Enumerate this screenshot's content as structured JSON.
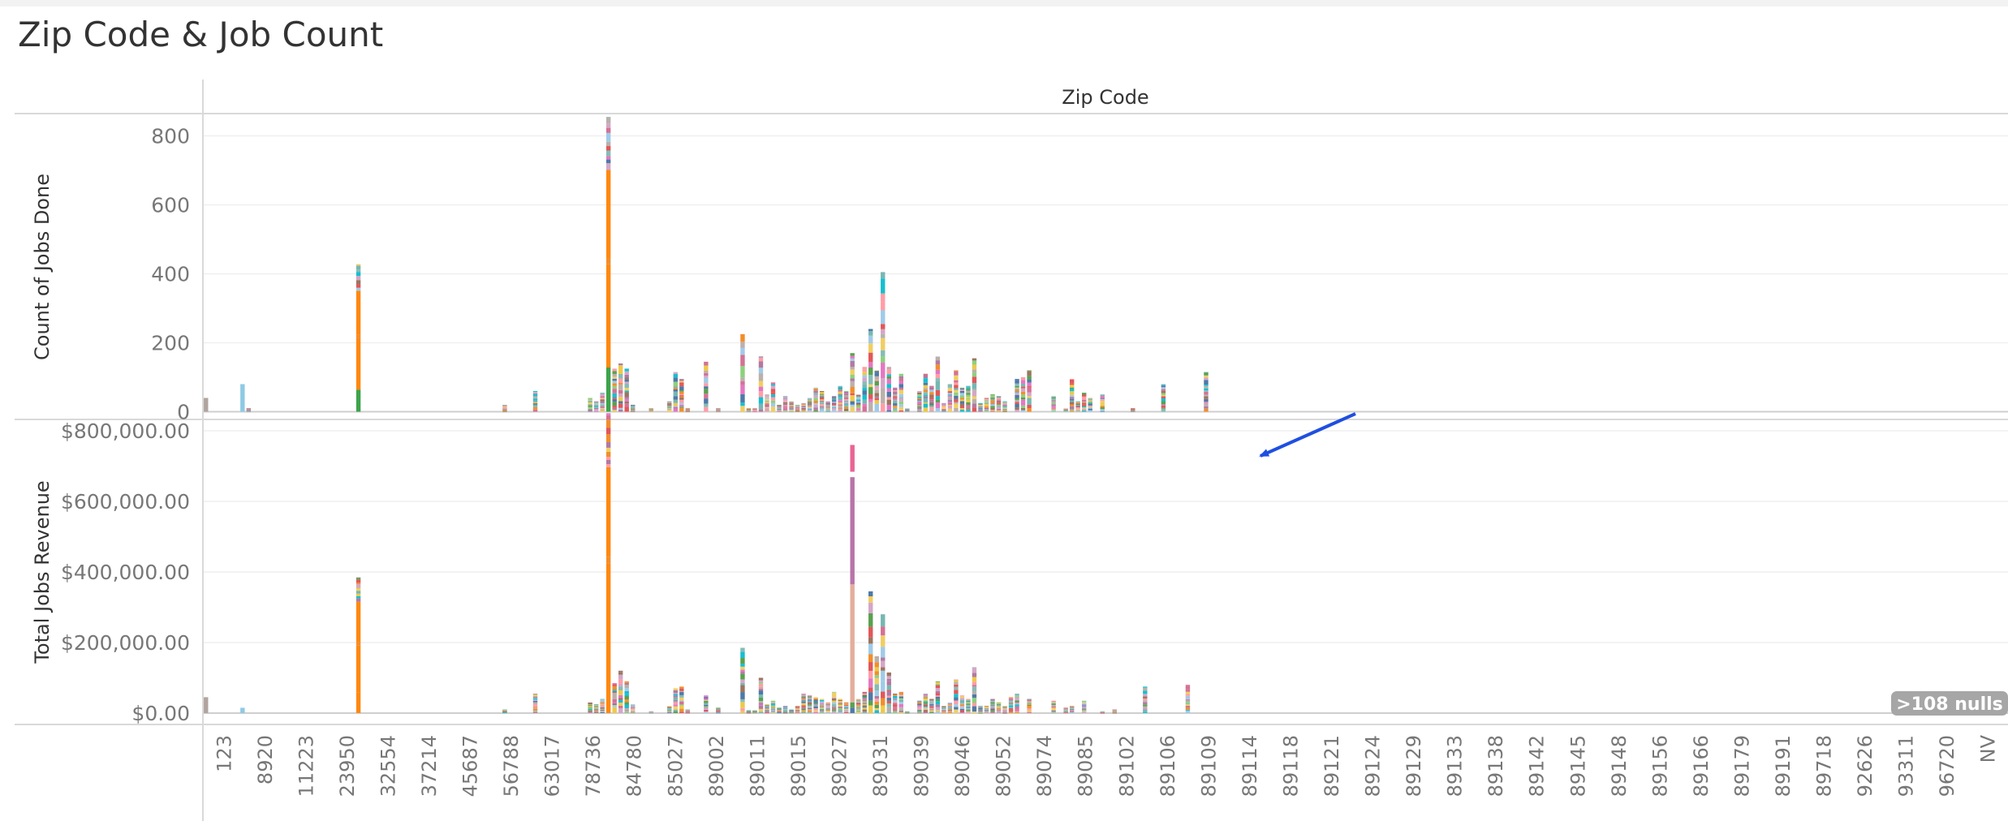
{
  "dashboard": {
    "title": "Zip Code & Job Count"
  },
  "colors": {
    "palette": [
      "#4e79a7",
      "#f28e2b",
      "#e15759",
      "#76b7b2",
      "#59a14f",
      "#edc948",
      "#b07aa1",
      "#ff9da7",
      "#9c755f",
      "#bab0ac",
      "#d37295",
      "#a0cbe8",
      "#8cd17d",
      "#f1ce63",
      "#86bcb6",
      "#d4a6c8",
      "#e377c2",
      "#17becf"
    ],
    "orange": "#ff8811",
    "light_blue": "#8ecae6",
    "grey": "#b0a59d",
    "green": "#3da34b",
    "peach": "#e3ae9c",
    "mauve": "#b874a7",
    "pink": "#e86494",
    "arrow": "#1f4fe0",
    "nulls_badge": "#a6a6a6"
  },
  "chart_data": {
    "type": "bar",
    "stacked": true,
    "column_header": "Zip Code",
    "x_tick_labels": [
      "123",
      "8920",
      "11223",
      "23950",
      "32554",
      "37214",
      "45687",
      "56788",
      "63017",
      "78736",
      "84780",
      "85027",
      "89002",
      "89011",
      "89015",
      "89027",
      "89031",
      "89039",
      "89046",
      "89052",
      "89074",
      "89085",
      "89102",
      "89106",
      "89109",
      "89114",
      "89118",
      "89121",
      "89124",
      "89129",
      "89133",
      "89138",
      "89142",
      "89145",
      "89148",
      "89156",
      "89166",
      "89179",
      "89191",
      "89718",
      "92626",
      "93311",
      "96720",
      "NV"
    ],
    "categories_count": 131,
    "panes": [
      {
        "measure": "Count of Jobs Done",
        "ylabel": "Count of Jobs Done",
        "ylim": [
          -20,
          860
        ],
        "y_ticks": [
          {
            "value": 0,
            "label": "0"
          },
          {
            "value": 200,
            "label": "200"
          },
          {
            "value": 400,
            "label": "400"
          },
          {
            "value": 600,
            "label": "600"
          },
          {
            "value": 800,
            "label": "800"
          }
        ],
        "values": [
          40,
          0,
          0,
          0,
          0,
          0,
          80,
          10,
          0,
          0,
          0,
          0,
          0,
          0,
          0,
          0,
          0,
          0,
          0,
          0,
          0,
          0,
          0,
          0,
          0,
          428,
          0,
          0,
          0,
          0,
          0,
          0,
          0,
          0,
          0,
          0,
          0,
          0,
          0,
          0,
          0,
          0,
          0,
          0,
          0,
          0,
          0,
          0,
          0,
          20,
          0,
          0,
          0,
          0,
          60,
          0,
          0,
          0,
          0,
          0,
          0,
          0,
          0,
          40,
          30,
          55,
          855,
          125,
          140,
          125,
          20,
          0,
          0,
          10,
          0,
          0,
          30,
          115,
          95,
          10,
          0,
          0,
          145,
          0,
          10,
          0,
          0,
          0,
          225,
          10,
          10,
          160,
          50,
          85,
          20,
          45,
          30,
          20,
          25,
          40,
          70,
          60,
          30,
          45,
          75,
          60,
          170,
          50,
          130,
          240,
          120,
          405,
          130,
          70,
          110,
          10,
          0,
          60,
          110,
          75,
          160,
          25,
          80,
          120,
          70,
          75,
          155,
          25,
          40,
          50,
          45,
          30,
          0,
          95,
          100,
          120,
          0,
          0,
          0,
          45,
          0,
          10,
          95,
          30,
          55,
          40,
          0,
          50,
          0,
          0,
          0,
          0,
          10,
          0,
          0,
          0,
          0,
          80,
          0,
          0,
          0,
          0,
          0,
          0,
          115,
          0,
          0,
          0,
          0,
          0,
          0,
          0,
          0,
          0,
          0,
          0,
          0,
          0,
          0,
          0,
          0,
          0,
          0,
          0,
          0,
          0,
          0,
          0,
          0,
          0,
          0,
          0,
          0,
          0,
          0,
          0,
          0,
          0,
          0,
          0,
          0,
          0,
          0,
          0,
          0,
          0,
          0,
          0,
          0,
          0,
          0,
          0,
          0,
          0,
          0,
          0,
          0,
          0,
          0,
          0,
          0,
          0,
          0,
          0,
          0,
          0,
          0,
          0,
          0,
          0,
          0,
          0,
          0,
          0,
          0,
          0,
          0,
          0,
          0,
          0,
          0,
          0,
          0,
          0,
          0,
          0,
          0,
          0,
          0,
          0,
          0,
          0,
          0,
          0,
          0,
          0,
          0,
          0,
          0,
          0,
          0,
          0,
          0,
          0,
          0,
          0,
          0,
          0,
          0,
          0,
          0,
          0,
          0,
          0,
          0,
          0,
          0,
          0,
          0,
          0,
          0,
          0,
          0,
          0,
          0,
          0,
          0,
          0,
          0,
          0,
          0,
          0,
          0,
          0,
          0,
          0
        ]
      },
      {
        "measure": "Total Jobs Revenue",
        "ylabel": "Total Jobs Revenue",
        "ylim": [
          -30000,
          830000
        ],
        "y_ticks": [
          {
            "value": 0,
            "label": "$0.00"
          },
          {
            "value": 200000,
            "label": "$200,000.00"
          },
          {
            "value": 400000,
            "label": "$400,000.00"
          },
          {
            "value": 600000,
            "label": "$600,000.00"
          },
          {
            "value": 800000,
            "label": "$800,000.00"
          }
        ],
        "values": [
          45000,
          0,
          0,
          0,
          0,
          0,
          15000,
          0,
          0,
          0,
          0,
          0,
          0,
          0,
          0,
          0,
          0,
          0,
          0,
          0,
          0,
          0,
          0,
          0,
          0,
          385000,
          0,
          0,
          0,
          0,
          0,
          0,
          0,
          0,
          0,
          0,
          0,
          0,
          0,
          0,
          0,
          0,
          0,
          0,
          0,
          0,
          0,
          0,
          0,
          10000,
          0,
          0,
          0,
          0,
          55000,
          0,
          0,
          0,
          0,
          0,
          0,
          0,
          0,
          30000,
          25000,
          40000,
          850000,
          85000,
          120000,
          90000,
          25000,
          0,
          0,
          5000,
          0,
          0,
          20000,
          70000,
          75000,
          10000,
          0,
          0,
          50000,
          0,
          15000,
          0,
          0,
          0,
          185000,
          8000,
          8000,
          100000,
          25000,
          35000,
          15000,
          20000,
          10000,
          20000,
          55000,
          50000,
          45000,
          40000,
          30000,
          60000,
          40000,
          30000,
          760000,
          40000,
          60000,
          345000,
          160000,
          280000,
          115000,
          55000,
          60000,
          5000,
          0,
          35000,
          55000,
          40000,
          90000,
          20000,
          30000,
          95000,
          50000,
          40000,
          130000,
          20000,
          20000,
          40000,
          30000,
          20000,
          45000,
          55000,
          0,
          40000,
          0,
          0,
          0,
          35000,
          0,
          15000,
          20000,
          0,
          35000,
          0,
          0,
          5000,
          0,
          10000,
          0,
          0,
          0,
          0,
          75000,
          0,
          0,
          0,
          0,
          0,
          0,
          80000,
          0,
          0,
          0,
          0,
          0,
          0,
          0,
          0,
          0,
          0,
          0,
          0,
          0,
          0,
          0,
          0,
          0,
          0,
          0,
          0,
          0,
          0,
          0,
          0,
          0,
          0,
          0,
          0,
          0,
          0,
          0,
          0,
          0,
          0,
          0,
          0,
          0,
          0,
          0,
          0,
          0,
          0,
          0,
          0,
          0,
          0,
          0,
          0,
          0,
          0,
          0,
          0,
          0,
          0,
          0,
          0,
          0,
          0,
          0,
          0,
          0,
          0,
          0,
          0,
          0,
          0,
          0,
          0,
          0,
          0,
          0,
          0,
          0,
          0,
          0,
          0,
          0,
          0,
          0,
          0,
          0,
          0,
          0,
          0,
          0,
          0,
          0,
          0,
          0,
          0,
          0,
          0,
          0,
          0,
          0,
          0,
          0,
          0,
          0,
          0,
          0,
          0,
          0,
          0,
          0,
          0,
          0,
          0,
          0,
          0,
          0,
          0,
          0,
          0,
          0,
          0,
          0,
          0,
          0,
          0,
          0,
          0,
          0,
          0,
          0,
          0,
          0,
          0,
          0,
          0,
          0,
          0,
          0,
          0,
          0,
          0,
          0,
          0,
          0,
          0,
          0
        ]
      }
    ],
    "annotation": {
      "type": "arrow",
      "from_zip": "89121",
      "to_zip": "89114",
      "pane_from": 0,
      "pane_to": 1
    },
    "nulls_indicator": ">108 nulls",
    "grid": true,
    "legend": "none"
  }
}
